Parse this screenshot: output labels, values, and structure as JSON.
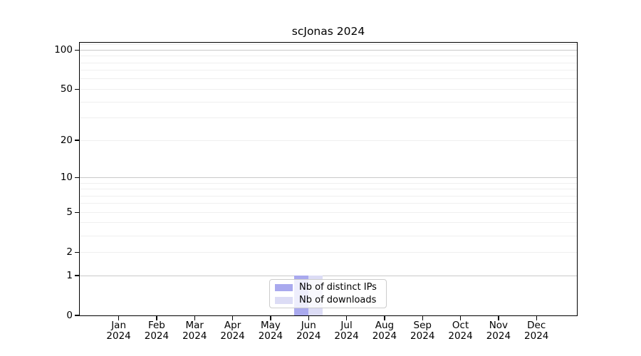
{
  "chart_data": {
    "type": "bar",
    "title": "scJonas 2024",
    "categories": [
      "Jan 2024",
      "Feb 2024",
      "Mar 2024",
      "Apr 2024",
      "May 2024",
      "Jun 2024",
      "Jul 2024",
      "Aug 2024",
      "Sep 2024",
      "Oct 2024",
      "Nov 2024",
      "Dec 2024"
    ],
    "series": [
      {
        "name": "Nb of distinct IPs",
        "color": "#a9a9ee",
        "values": [
          0,
          0,
          0,
          0,
          0,
          1,
          0,
          0,
          0,
          0,
          0,
          0
        ]
      },
      {
        "name": "Nb of downloads",
        "color": "#dcdcf5",
        "values": [
          0,
          0,
          0,
          0,
          0,
          1,
          0,
          0,
          0,
          0,
          0,
          0
        ]
      }
    ],
    "xlabel": "",
    "ylabel": "",
    "y_axis": {
      "scale": "log1p",
      "ylim": [
        0,
        113
      ],
      "tick_values": [
        100,
        50,
        20,
        10,
        5,
        2,
        1,
        0
      ],
      "tick_labels": [
        "100",
        "50",
        "20",
        "10",
        "5",
        "2",
        "1",
        "0"
      ],
      "major_gridlines": [
        1,
        10,
        100
      ],
      "minor_gridlines": [
        2,
        3,
        4,
        5,
        6,
        7,
        8,
        9,
        20,
        30,
        40,
        50,
        60,
        70,
        80,
        90,
        110
      ]
    },
    "legend": {
      "entries": [
        "Nb of distinct IPs",
        "Nb of downloads"
      ],
      "position": "bottom-center"
    },
    "grid": true,
    "colors": {
      "major_grid": "#c9c9c9",
      "minor_grid": "#efefef",
      "axis": "#000000",
      "legend_border": "#cccccc"
    }
  }
}
